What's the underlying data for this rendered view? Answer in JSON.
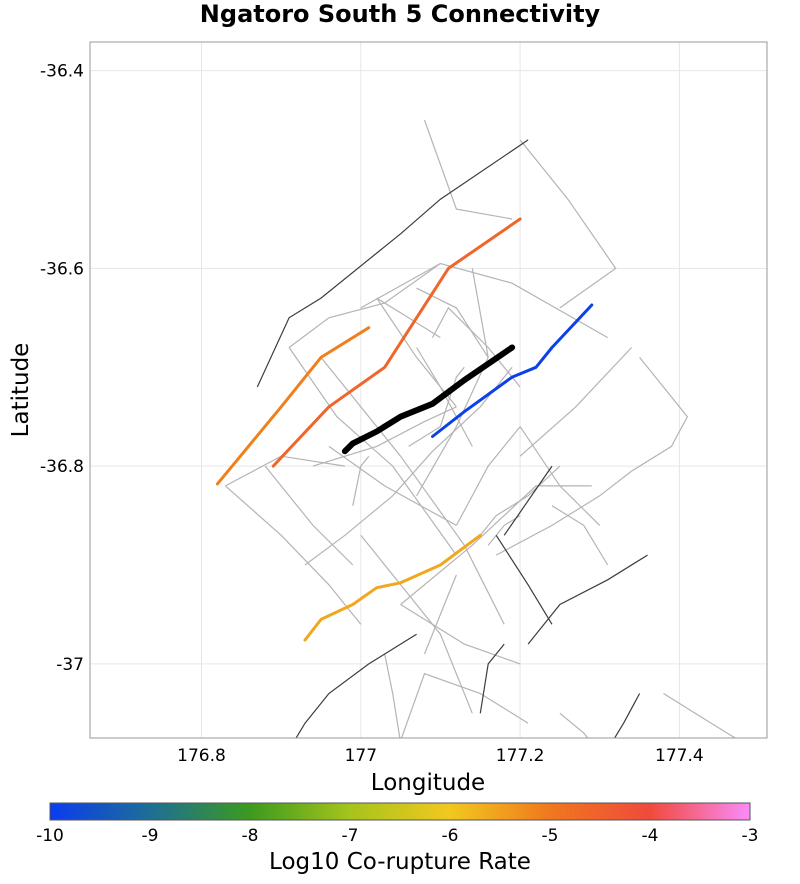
{
  "chart_data": {
    "type": "line",
    "title": "Ngatoro South 5 Connectivity",
    "xlabel": "Longitude",
    "ylabel": "Latitude",
    "xlim": [
      176.66,
      177.51
    ],
    "ylim": [
      -37.075,
      -36.371
    ],
    "x_ticks": [
      176.8,
      177.0,
      177.2,
      177.4
    ],
    "x_tick_labels": [
      "176.8",
      "177",
      "177.2",
      "177.4"
    ],
    "y_ticks": [
      -36.4,
      -36.6,
      -36.8,
      -37.0
    ],
    "y_tick_labels": [
      "-36.4",
      "-36.6",
      "-36.8",
      "-37"
    ],
    "grid": true,
    "colorbar": {
      "label": "Log10 Co-rupture Rate",
      "min": -10,
      "max": -3,
      "ticks": [
        -10,
        -9,
        -8,
        -7,
        -6,
        -5,
        -4,
        -3
      ],
      "tick_labels": [
        "-10",
        "-9",
        "-8",
        "-7",
        "-6",
        "-5",
        "-4",
        "-3"
      ],
      "stops": [
        {
          "value": -10,
          "color": "#0a3cf0"
        },
        {
          "value": -9,
          "color": "#1e6e96"
        },
        {
          "value": -8,
          "color": "#3c9a1e"
        },
        {
          "value": -7,
          "color": "#a6c41c"
        },
        {
          "value": -6,
          "color": "#f2c81e"
        },
        {
          "value": -5,
          "color": "#f0781e"
        },
        {
          "value": -4,
          "color": "#f04a3c"
        },
        {
          "value": -3,
          "color": "#fa8cfa"
        }
      ]
    },
    "background_sections": [
      {
        "color": "#b4b4b4",
        "points": [
          [
            177.0,
            -36.64
          ],
          [
            177.1,
            -36.595
          ],
          [
            177.19,
            -36.615
          ],
          [
            177.31,
            -36.67
          ]
        ]
      },
      {
        "color": "#b4b4b4",
        "points": [
          [
            176.91,
            -36.68
          ],
          [
            176.96,
            -36.65
          ],
          [
            177.03,
            -36.635
          ],
          [
            177.1,
            -36.595
          ]
        ]
      },
      {
        "color": "#b4b4b4",
        "points": [
          [
            176.91,
            -36.68
          ],
          [
            176.97,
            -36.75
          ],
          [
            177.04,
            -36.8
          ],
          [
            177.12,
            -36.89
          ]
        ]
      },
      {
        "color": "#b4b4b4",
        "points": [
          [
            176.95,
            -36.69
          ],
          [
            177.05,
            -36.79
          ],
          [
            177.13,
            -36.88
          ],
          [
            177.18,
            -36.96
          ]
        ]
      },
      {
        "color": "#b4b4b4",
        "points": [
          [
            176.94,
            -36.8
          ],
          [
            177.02,
            -36.78
          ],
          [
            177.08,
            -36.755
          ],
          [
            177.12,
            -36.74
          ]
        ]
      },
      {
        "color": "#b4b4b4",
        "points": [
          [
            176.96,
            -36.78
          ],
          [
            177.03,
            -36.82
          ],
          [
            177.12,
            -36.86
          ]
        ]
      },
      {
        "color": "#b4b4b4",
        "points": [
          [
            176.93,
            -36.9
          ],
          [
            176.98,
            -36.87
          ],
          [
            177.04,
            -36.83
          ],
          [
            177.09,
            -36.785
          ],
          [
            177.15,
            -36.74
          ],
          [
            177.19,
            -36.7
          ]
        ]
      },
      {
        "color": "#b4b4b4",
        "points": [
          [
            176.83,
            -36.82
          ],
          [
            176.9,
            -36.79
          ],
          [
            176.98,
            -36.8
          ]
        ]
      },
      {
        "color": "#b4b4b4",
        "points": [
          [
            176.83,
            -36.82
          ],
          [
            176.9,
            -36.87
          ],
          [
            176.96,
            -36.92
          ],
          [
            177.0,
            -36.96
          ]
        ]
      },
      {
        "color": "#b4b4b4",
        "points": [
          [
            176.88,
            -36.8
          ],
          [
            176.94,
            -36.86
          ],
          [
            176.99,
            -36.9
          ]
        ]
      },
      {
        "color": "#b4b4b4",
        "points": [
          [
            176.99,
            -36.84
          ],
          [
            177.0,
            -36.8
          ],
          [
            177.01,
            -36.79
          ]
        ]
      },
      {
        "color": "#b4b4b4",
        "points": [
          [
            177.0,
            -36.87
          ],
          [
            177.06,
            -36.93
          ],
          [
            177.1,
            -36.97
          ],
          [
            177.14,
            -37.05
          ]
        ]
      },
      {
        "color": "#b4b4b4",
        "points": [
          [
            177.12,
            -36.86
          ],
          [
            177.16,
            -36.8
          ],
          [
            177.2,
            -36.76
          ]
        ]
      },
      {
        "color": "#b4b4b4",
        "points": [
          [
            177.05,
            -36.94
          ],
          [
            177.14,
            -36.88
          ],
          [
            177.22,
            -36.82
          ],
          [
            177.29,
            -36.82
          ]
        ]
      },
      {
        "color": "#b4b4b4",
        "points": [
          [
            177.05,
            -36.94
          ],
          [
            177.13,
            -36.98
          ],
          [
            177.2,
            -37.0
          ]
        ]
      },
      {
        "color": "#b4b4b4",
        "points": [
          [
            177.07,
            -36.83
          ],
          [
            177.12,
            -36.76
          ],
          [
            177.16,
            -36.69
          ],
          [
            177.14,
            -36.6
          ]
        ]
      },
      {
        "color": "#b4b4b4",
        "points": [
          [
            177.2,
            -36.76
          ],
          [
            177.25,
            -36.82
          ],
          [
            177.3,
            -36.86
          ]
        ]
      },
      {
        "color": "#b4b4b4",
        "points": [
          [
            177.2,
            -36.79
          ],
          [
            177.27,
            -36.74
          ],
          [
            177.34,
            -36.68
          ]
        ]
      },
      {
        "color": "#b4b4b4",
        "points": [
          [
            177.15,
            -36.87
          ],
          [
            177.17,
            -36.85
          ],
          [
            177.21,
            -36.83
          ],
          [
            177.25,
            -36.8
          ]
        ]
      },
      {
        "color": "#b4b4b4",
        "points": [
          [
            177.17,
            -36.89
          ],
          [
            177.24,
            -36.86
          ],
          [
            177.3,
            -36.83
          ],
          [
            177.34,
            -36.805
          ]
        ]
      },
      {
        "color": "#b4b4b4",
        "points": [
          [
            177.24,
            -36.84
          ],
          [
            177.28,
            -36.86
          ],
          [
            177.31,
            -36.9
          ]
        ]
      },
      {
        "color": "#b4b4b4",
        "points": [
          [
            177.34,
            -36.805
          ],
          [
            177.39,
            -36.78
          ],
          [
            177.41,
            -36.75
          ],
          [
            177.35,
            -36.69
          ]
        ]
      },
      {
        "color": "#b4b4b4",
        "points": [
          [
            177.13,
            -36.7
          ],
          [
            177.12,
            -36.71
          ],
          [
            177.1,
            -36.76
          ],
          [
            177.06,
            -36.78
          ]
        ]
      },
      {
        "color": "#b4b4b4",
        "points": [
          [
            177.02,
            -36.63
          ],
          [
            177.07,
            -36.69
          ],
          [
            177.12,
            -36.74
          ]
        ]
      },
      {
        "color": "#b4b4b4",
        "points": [
          [
            177.07,
            -36.68
          ],
          [
            177.1,
            -36.72
          ],
          [
            177.14,
            -36.78
          ]
        ]
      },
      {
        "color": "#b4b4b4",
        "points": [
          [
            177.09,
            -36.67
          ],
          [
            177.11,
            -36.64
          ],
          [
            177.16,
            -36.68
          ],
          [
            177.2,
            -36.72
          ]
        ]
      },
      {
        "color": "#b4b4b4",
        "points": [
          [
            177.04,
            -37.1
          ],
          [
            177.08,
            -37.01
          ],
          [
            177.15,
            -37.03
          ],
          [
            177.21,
            -37.06
          ]
        ]
      },
      {
        "color": "#b4b4b4",
        "points": [
          [
            177.25,
            -37.05
          ],
          [
            177.28,
            -37.07
          ],
          [
            177.31,
            -37.1
          ]
        ]
      },
      {
        "color": "#b4b4b4",
        "points": [
          [
            177.38,
            -37.03
          ],
          [
            177.44,
            -37.06
          ],
          [
            177.5,
            -37.09
          ]
        ]
      },
      {
        "color": "#b4b4b4",
        "points": [
          [
            177.08,
            -36.99
          ],
          [
            177.1,
            -36.95
          ],
          [
            177.12,
            -36.91
          ]
        ]
      },
      {
        "color": "#b4b4b4",
        "points": [
          [
            177.03,
            -36.99
          ],
          [
            177.04,
            -37.03
          ],
          [
            177.05,
            -37.08
          ]
        ]
      },
      {
        "color": "#b4b4b4",
        "points": [
          [
            177.16,
            -36.88
          ],
          [
            177.18,
            -36.86
          ],
          [
            177.2,
            -36.85
          ]
        ]
      },
      {
        "color": "#b4b4b4",
        "points": [
          [
            177.08,
            -36.45
          ],
          [
            177.12,
            -36.54
          ],
          [
            177.19,
            -36.55
          ]
        ]
      },
      {
        "color": "#b4b4b4",
        "points": [
          [
            177.2,
            -36.47
          ],
          [
            177.26,
            -36.53
          ],
          [
            177.32,
            -36.6
          ],
          [
            177.25,
            -36.64
          ]
        ]
      },
      {
        "color": "#b4b4b4",
        "points": [
          [
            177.07,
            -36.62
          ],
          [
            177.12,
            -36.64
          ],
          [
            177.16,
            -36.69
          ]
        ]
      },
      {
        "color": "#b4b4b4",
        "points": [
          [
            177.02,
            -36.63
          ],
          [
            177.06,
            -36.65
          ],
          [
            177.1,
            -36.67
          ]
        ]
      },
      {
        "color": "#3c3c3c",
        "points": [
          [
            176.87,
            -36.72
          ],
          [
            176.91,
            -36.65
          ],
          [
            176.95,
            -36.63
          ],
          [
            177.05,
            -36.565
          ],
          [
            177.1,
            -36.53
          ],
          [
            177.21,
            -36.47
          ]
        ]
      },
      {
        "color": "#3c3c3c",
        "points": [
          [
            177.18,
            -36.87
          ],
          [
            177.24,
            -36.8
          ]
        ]
      },
      {
        "color": "#3c3c3c",
        "points": [
          [
            177.17,
            -36.87
          ],
          [
            177.21,
            -36.92
          ],
          [
            177.24,
            -36.96
          ]
        ]
      },
      {
        "color": "#3c3c3c",
        "points": [
          [
            177.21,
            -36.98
          ],
          [
            177.25,
            -36.94
          ],
          [
            177.31,
            -36.915
          ],
          [
            177.36,
            -36.89
          ]
        ]
      },
      {
        "color": "#3c3c3c",
        "points": [
          [
            176.9,
            -37.1
          ],
          [
            176.93,
            -37.06
          ],
          [
            176.96,
            -37.03
          ],
          [
            177.01,
            -37.0
          ],
          [
            177.07,
            -36.97
          ]
        ]
      },
      {
        "color": "#3c3c3c",
        "points": [
          [
            177.3,
            -37.1
          ],
          [
            177.33,
            -37.06
          ],
          [
            177.35,
            -37.03
          ]
        ]
      },
      {
        "color": "#3c3c3c",
        "points": [
          [
            177.15,
            -37.05
          ],
          [
            177.16,
            -37.0
          ],
          [
            177.18,
            -36.98
          ]
        ]
      }
    ],
    "series": [
      {
        "log_rate": -5.1,
        "points": [
          [
            176.82,
            -36.818
          ],
          [
            176.9,
            -36.74
          ],
          [
            176.95,
            -36.69
          ],
          [
            177.01,
            -36.66
          ]
        ]
      },
      {
        "log_rate": -4.6,
        "points": [
          [
            176.89,
            -36.8
          ],
          [
            176.96,
            -36.74
          ],
          [
            177.03,
            -36.7
          ],
          [
            177.07,
            -36.65
          ],
          [
            177.11,
            -36.6
          ],
          [
            177.2,
            -36.55
          ]
        ]
      },
      {
        "log_rate": -5.6,
        "points": [
          [
            176.93,
            -36.976
          ],
          [
            176.95,
            -36.955
          ],
          [
            176.99,
            -36.94
          ],
          [
            177.02,
            -36.923
          ],
          [
            177.05,
            -36.918
          ],
          [
            177.1,
            -36.9
          ],
          [
            177.15,
            -36.87
          ]
        ]
      },
      {
        "log_rate": -9.9,
        "points": [
          [
            177.09,
            -36.77
          ],
          [
            177.13,
            -36.745
          ],
          [
            177.19,
            -36.71
          ],
          [
            177.22,
            -36.7
          ],
          [
            177.24,
            -36.68
          ],
          [
            177.29,
            -36.637
          ]
        ]
      },
      {
        "log_rate": null,
        "highlight": true,
        "color": "#000000",
        "points": [
          [
            176.98,
            -36.785
          ],
          [
            176.99,
            -36.777
          ],
          [
            177.02,
            -36.765
          ],
          [
            177.05,
            -36.75
          ],
          [
            177.09,
            -36.737
          ],
          [
            177.13,
            -36.713
          ],
          [
            177.19,
            -36.68
          ]
        ]
      }
    ]
  }
}
